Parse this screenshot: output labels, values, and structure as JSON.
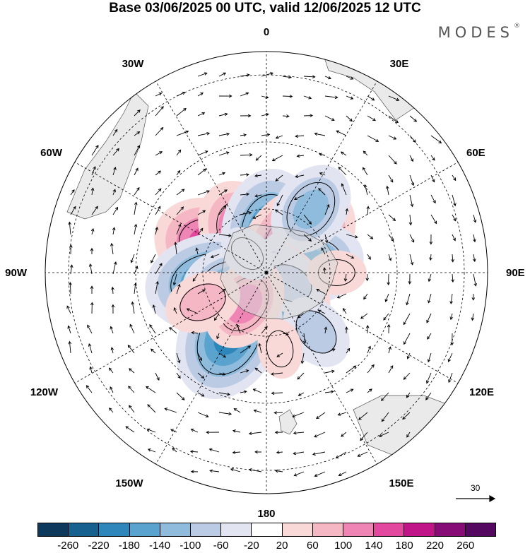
{
  "title": "Base 03/06/2025 00 UTC, valid 12/06/2025 12 UTC",
  "brand": "MODES",
  "brand_mark": "®",
  "longitude_labels": {
    "lon_0": "0",
    "lon_30e": "30E",
    "lon_60e": "60E",
    "lon_90e": "90E",
    "lon_120e": "120E",
    "lon_150e": "150E",
    "lon_180": "180",
    "lon_150w": "150W",
    "lon_120w": "120W",
    "lon_90w": "90W",
    "lon_60w": "60W",
    "lon_30w": "30W"
  },
  "vector_reference": {
    "label": "30"
  },
  "colorbar": {
    "colors": [
      "#0d3a5c",
      "#17618f",
      "#2f86bb",
      "#5aa3cf",
      "#8fbbdc",
      "#bccbe4",
      "#e3e4f1",
      "#ffffff",
      "#f9d9d8",
      "#f4b7c3",
      "#ef85b5",
      "#e3489f",
      "#c11489",
      "#870c76",
      "#55085f"
    ],
    "ticks": [
      "-260",
      "-220",
      "-180",
      "-140",
      "-100",
      "-60",
      "-20",
      "20",
      "60",
      "100",
      "140",
      "180",
      "220",
      "260"
    ]
  },
  "anomaly_centers": [
    {
      "lon": -65,
      "lat": -42,
      "value": 200
    },
    {
      "lon": -30,
      "lat": -50,
      "value": 140
    },
    {
      "lon": 5,
      "lat": -55,
      "value": -180
    },
    {
      "lon": 45,
      "lat": -50,
      "value": 190
    },
    {
      "lon": 78,
      "lat": -52,
      "value": -170
    },
    {
      "lon": 35,
      "lat": -25,
      "value": -100
    },
    {
      "lon": -100,
      "lat": -40,
      "value": -190
    },
    {
      "lon": -105,
      "lat": -55,
      "value": -130
    },
    {
      "lon": 140,
      "lat": -68,
      "value": 170
    },
    {
      "lon": 165,
      "lat": -60,
      "value": -190
    },
    {
      "lon": 115,
      "lat": -67,
      "value": -90
    },
    {
      "lon": -150,
      "lat": -27,
      "value": -180
    },
    {
      "lon": -145,
      "lat": -55,
      "value": 120
    },
    {
      "lon": -115,
      "lat": -30,
      "value": 70
    },
    {
      "lon": 140,
      "lat": -25,
      "value": -70
    },
    {
      "lon": 90,
      "lat": -30,
      "value": 50
    },
    {
      "lon": -45,
      "lat": -65,
      "value": -50
    },
    {
      "lon": 170,
      "lat": -25,
      "value": 40
    }
  ]
}
